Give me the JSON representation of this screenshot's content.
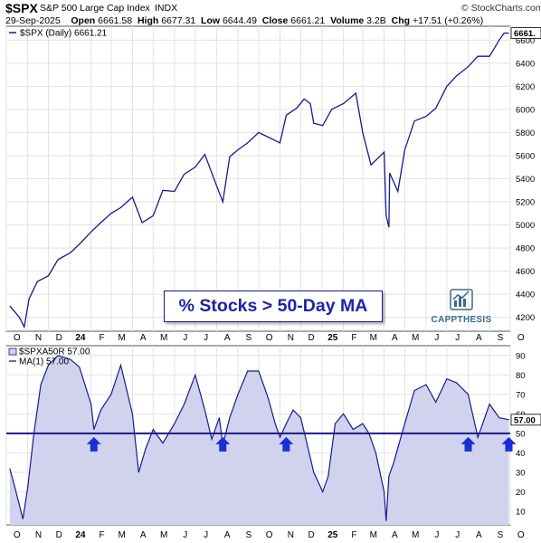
{
  "header": {
    "symbol": "$SPX",
    "name": "S&P 500 Large Cap Index",
    "exchange": "INDX",
    "source": "© StockCharts.com",
    "date": "29-Sep-2025",
    "open_label": "Open",
    "open": "6661.58",
    "high_label": "High",
    "high": "6677.31",
    "low_label": "Low",
    "low": "6644.49",
    "close_label": "Close",
    "close": "6661.21",
    "volume_label": "Volume",
    "volume": "3.2B",
    "chg_label": "Chg",
    "chg": "+17.51 (+0.26%)"
  },
  "callout": "% Stocks > 50-Day MA",
  "brand": "CAPPTHESIS",
  "colors": {
    "line": "#1a1a8c",
    "fill": "#d0d2ee",
    "arrow": "#1c2fd6",
    "ref_line": "#1a1a8c",
    "grid": "#e2e2e2"
  },
  "chart_data": [
    {
      "type": "line",
      "legend": "$SPX (Daily) 6661.21",
      "last_label": "6661.",
      "ylim": [
        4080,
        6720
      ],
      "yticks": [
        "4200",
        "4400",
        "4600",
        "4800",
        "5000",
        "5200",
        "5400",
        "5600",
        "5800",
        "6000",
        "6200",
        "6400",
        "6600"
      ],
      "x": [
        "Oct-06",
        "Oct-20",
        "Oct-27",
        "Nov-03",
        "Nov-15",
        "Dec-01",
        "Dec-15",
        "Jan-02",
        "Jan-16",
        "Feb-01",
        "Feb-15",
        "Mar-01",
        "Mar-15",
        "Apr-01",
        "Apr-15",
        "May-01",
        "May-15",
        "Jun-01",
        "Jun-15",
        "Jul-01",
        "Jul-15",
        "Aug-01",
        "Aug-10",
        "Aug-20",
        "Sep-01",
        "Sep-15",
        "Oct-01",
        "Oct-15",
        "Nov-01",
        "Nov-10",
        "Nov-25",
        "Dec-06",
        "Dec-15",
        "Dec-20",
        "Jan-02",
        "Jan-15",
        "Feb-01",
        "Feb-19",
        "Mar-01",
        "Mar-13",
        "Apr-01",
        "Apr-04",
        "Apr-08",
        "Apr-09",
        "Apr-21",
        "May-01",
        "May-15",
        "Jun-01",
        "Jun-15",
        "Jul-01",
        "Jul-15",
        "Aug-01",
        "Aug-15",
        "Sep-01",
        "Sep-15",
        "Sep-22",
        "Sep-29"
      ],
      "values": [
        4300,
        4200,
        4117,
        4360,
        4510,
        4560,
        4700,
        4760,
        4840,
        4940,
        5020,
        5100,
        5150,
        5240,
        5020,
        5080,
        5300,
        5290,
        5440,
        5500,
        5610,
        5340,
        5200,
        5590,
        5650,
        5710,
        5800,
        5760,
        5710,
        5950,
        6010,
        6090,
        6050,
        5880,
        5860,
        6000,
        6050,
        6140,
        5800,
        5520,
        5630,
        5080,
        4980,
        5450,
        5290,
        5650,
        5900,
        5940,
        6010,
        6200,
        6290,
        6370,
        6460,
        6460,
        6600,
        6660,
        6661
      ]
    },
    {
      "type": "area",
      "legend": "$SPXA50R 57.00",
      "legend2": "MA(1) 57.00",
      "last_label": "57.00",
      "ylim": [
        3,
        95
      ],
      "yticks": [
        "10",
        "20",
        "30",
        "40",
        "50",
        "60",
        "70",
        "80",
        "90"
      ],
      "reference_line": 50,
      "arrows_at": [
        "Feb-05",
        "Aug-10",
        "Nov-10",
        "Aug-01",
        "Sep-29"
      ],
      "x": [
        "Oct-06",
        "Oct-15",
        "Oct-25",
        "Nov-01",
        "Nov-10",
        "Nov-20",
        "Dec-01",
        "Dec-15",
        "Jan-02",
        "Jan-15",
        "Feb-01",
        "Feb-05",
        "Feb-15",
        "Mar-01",
        "Mar-15",
        "Apr-01",
        "Apr-10",
        "Apr-20",
        "May-01",
        "May-15",
        "Jun-01",
        "Jun-15",
        "Jul-01",
        "Jul-15",
        "Jul-25",
        "Aug-05",
        "Aug-10",
        "Aug-20",
        "Sep-01",
        "Sep-15",
        "Oct-01",
        "Oct-15",
        "Oct-25",
        "Nov-01",
        "Nov-10",
        "Nov-20",
        "Dec-01",
        "Dec-10",
        "Dec-20",
        "Jan-02",
        "Jan-10",
        "Jan-20",
        "Feb-01",
        "Feb-15",
        "Mar-01",
        "Mar-10",
        "Mar-20",
        "Apr-01",
        "Apr-04",
        "Apr-08",
        "Apr-15",
        "May-01",
        "May-15",
        "Jun-01",
        "Jun-15",
        "Jul-01",
        "Jul-15",
        "Aug-01",
        "Aug-15",
        "Sep-01",
        "Sep-15",
        "Sep-29"
      ],
      "values": [
        32,
        20,
        6,
        22,
        50,
        75,
        85,
        90,
        88,
        84,
        65,
        52,
        62,
        70,
        85,
        60,
        30,
        42,
        52,
        45,
        55,
        65,
        80,
        62,
        47,
        58,
        44,
        58,
        70,
        82,
        82,
        68,
        55,
        48,
        55,
        62,
        58,
        45,
        30,
        20,
        28,
        55,
        60,
        52,
        55,
        50,
        40,
        20,
        5,
        28,
        35,
        55,
        72,
        75,
        66,
        78,
        76,
        70,
        48,
        65,
        58,
        57
      ]
    }
  ],
  "x_axis_labels": [
    "O",
    "N",
    "D",
    "24",
    "F",
    "M",
    "A",
    "M",
    "J",
    "J",
    "A",
    "S",
    "O",
    "N",
    "D",
    "25",
    "F",
    "M",
    "A",
    "M",
    "J",
    "J",
    "A",
    "S",
    "O"
  ]
}
